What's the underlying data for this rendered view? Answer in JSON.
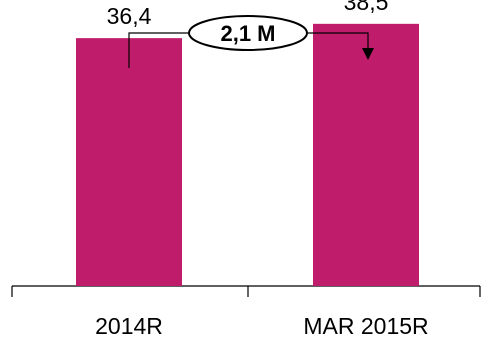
{
  "chart_data": {
    "type": "bar",
    "categories": [
      "2014R",
      "MAR 2015R"
    ],
    "values": [
      36.4,
      38.5
    ],
    "value_labels": [
      "36,4",
      "38,5"
    ],
    "ylim": [
      0,
      42
    ],
    "bar_color": "#bf1d6b",
    "annotation": {
      "label": "2,1 M",
      "from": "2014R",
      "to": "MAR 2015R"
    },
    "grid": false,
    "legend": "none",
    "title": "",
    "xlabel": "",
    "ylabel": ""
  }
}
